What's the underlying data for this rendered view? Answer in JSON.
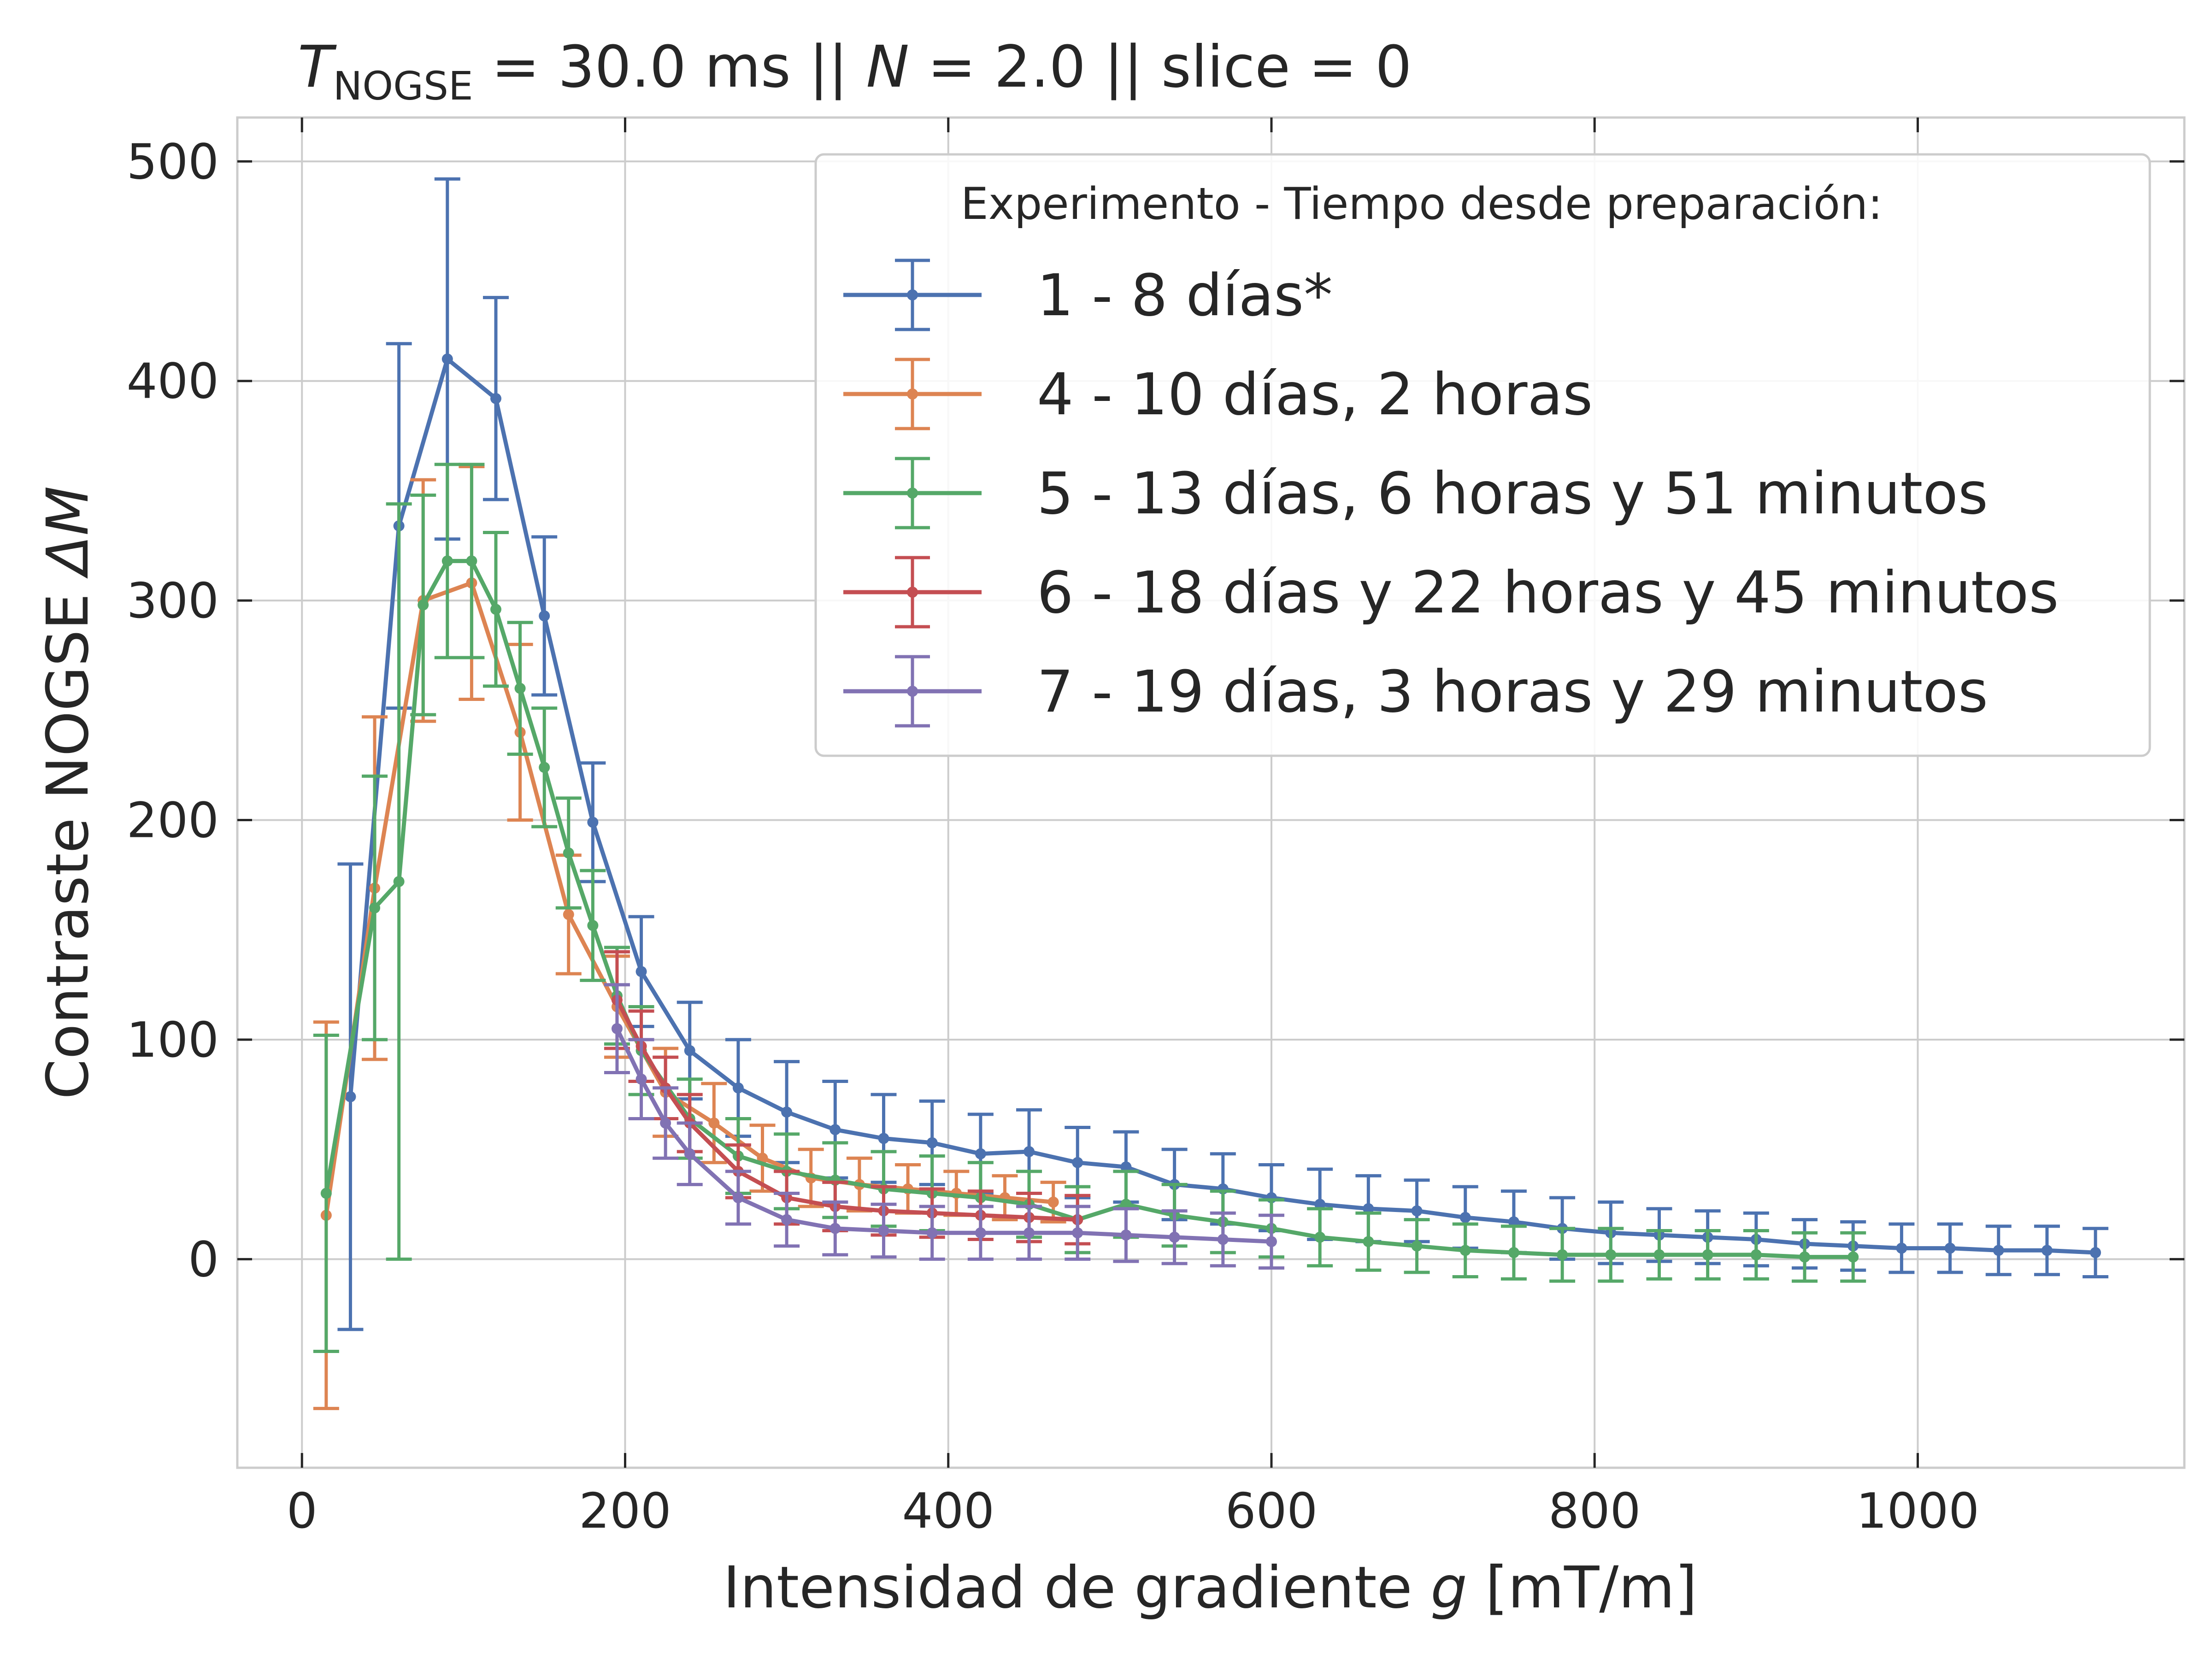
{
  "chart_data": {
    "type": "line",
    "title": "T_NOGSE = 30.0 ms  ||  N = 2.0 || slice = 0",
    "title_parts": {
      "t_symbol": "T",
      "t_subscript": "NOGSE",
      "part1": " = 30.0 ms  ||  ",
      "n_symbol": "N",
      "part2": " = 2.0 || slice = 0"
    },
    "xlabel": "Intensidad de gradiente g [mT/m]",
    "xlabel_parts": {
      "pre": "Intensidad de gradiente ",
      "var": "g",
      "post": " [mT/m]"
    },
    "ylabel": "Contraste NOGSE ΔM",
    "ylabel_parts": {
      "pre": "Contraste NOGSE ",
      "var": "ΔM"
    },
    "xlim": [
      -40,
      1165
    ],
    "ylim": [
      -95,
      520
    ],
    "xticks": [
      0,
      200,
      400,
      600,
      800,
      1000
    ],
    "yticks": [
      0,
      100,
      200,
      300,
      400,
      500
    ],
    "xtick_labels": [
      "0",
      "200",
      "400",
      "600",
      "800",
      "1000"
    ],
    "ytick_labels": [
      "0",
      "100",
      "200",
      "300",
      "400",
      "500"
    ],
    "grid": true,
    "error_bars": true,
    "legend": {
      "position": "top-right",
      "title": "Experimento - Tiempo desde preparación:"
    },
    "series": [
      {
        "name": "1 - 8 días*",
        "color": "#4c72b0",
        "x": [
          30,
          60,
          90,
          120,
          150,
          180,
          210,
          240,
          270,
          300,
          330,
          360,
          390,
          420,
          450,
          480,
          510,
          540,
          570,
          600,
          630,
          660,
          690,
          720,
          750,
          780,
          810,
          840,
          870,
          900,
          930,
          960,
          990,
          1020,
          1050,
          1080,
          1110
        ],
        "y": [
          74,
          334,
          410,
          392,
          293,
          199,
          131,
          95,
          78,
          67,
          59,
          55,
          53,
          48,
          49,
          44,
          42,
          34,
          32,
          28,
          25,
          23,
          22,
          19,
          17,
          14,
          12,
          11,
          10,
          9,
          7,
          6,
          5,
          5,
          4,
          4,
          3
        ],
        "err": [
          106,
          83,
          82,
          46,
          36,
          27,
          25,
          22,
          22,
          23,
          22,
          20,
          19,
          18,
          19,
          16,
          16,
          16,
          16,
          15,
          16,
          15,
          14,
          14,
          14,
          14,
          14,
          12,
          12,
          12,
          11,
          11,
          11,
          11,
          11,
          11,
          11
        ]
      },
      {
        "name": "4 - 10 días, 2 horas",
        "color": "#dd8452",
        "x": [
          15,
          45,
          75,
          105,
          135,
          165,
          195,
          225,
          255,
          285,
          315,
          345,
          375,
          405,
          435,
          465
        ],
        "y": [
          20,
          169,
          300,
          308,
          240,
          157,
          115,
          76,
          62,
          46,
          37,
          34,
          32,
          30,
          28,
          26
        ],
        "err": [
          88,
          78,
          55,
          53,
          40,
          27,
          23,
          20,
          18,
          15,
          13,
          12,
          11,
          10,
          10,
          9
        ]
      },
      {
        "name": "5 - 13 días, 6 horas y 51 minutos",
        "color": "#55a868",
        "x": [
          15,
          45,
          60,
          75,
          90,
          105,
          120,
          135,
          150,
          165,
          180,
          195,
          210,
          240,
          270,
          300,
          330,
          360,
          390,
          420,
          450,
          480,
          510,
          540,
          570,
          600,
          630,
          660,
          690,
          720,
          750,
          780,
          810,
          840,
          870,
          900,
          930,
          960
        ],
        "y": [
          30,
          160,
          172,
          298,
          318,
          318,
          296,
          260,
          224,
          185,
          152,
          120,
          95,
          64,
          47,
          40,
          36,
          32,
          30,
          28,
          25,
          18,
          25,
          20,
          17,
          14,
          10,
          8,
          6,
          4,
          3,
          2,
          2,
          2,
          2,
          2,
          1,
          1
        ],
        "err": [
          72,
          60,
          172,
          50,
          44,
          44,
          35,
          30,
          27,
          25,
          25,
          22,
          20,
          18,
          17,
          17,
          17,
          17,
          17,
          16,
          15,
          15,
          15,
          14,
          14,
          13,
          13,
          13,
          12,
          12,
          12,
          12,
          12,
          11,
          11,
          11,
          11,
          11
        ]
      },
      {
        "name": "6 - 18 días y 22 horas y 45 minutos",
        "color": "#c44e52",
        "x": [
          195,
          210,
          225,
          240,
          270,
          300,
          330,
          360,
          390,
          420,
          450,
          480
        ],
        "y": [
          118,
          97,
          78,
          62,
          40,
          28,
          24,
          22,
          21,
          20,
          19,
          18
        ],
        "err": [
          22,
          16,
          14,
          13,
          12,
          12,
          11,
          11,
          11,
          11,
          11,
          11
        ]
      },
      {
        "name": "7 - 19 días, 3 horas y 29 minutos",
        "color": "#8172b3",
        "x": [
          195,
          210,
          225,
          240,
          270,
          300,
          330,
          360,
          390,
          420,
          450,
          480,
          510,
          540,
          570,
          600
        ],
        "y": [
          105,
          82,
          62,
          48,
          28,
          18,
          14,
          13,
          12,
          12,
          12,
          12,
          11,
          10,
          9,
          8
        ],
        "err": [
          20,
          18,
          16,
          14,
          12,
          12,
          12,
          12,
          12,
          12,
          12,
          12,
          12,
          12,
          12,
          12
        ]
      }
    ]
  }
}
